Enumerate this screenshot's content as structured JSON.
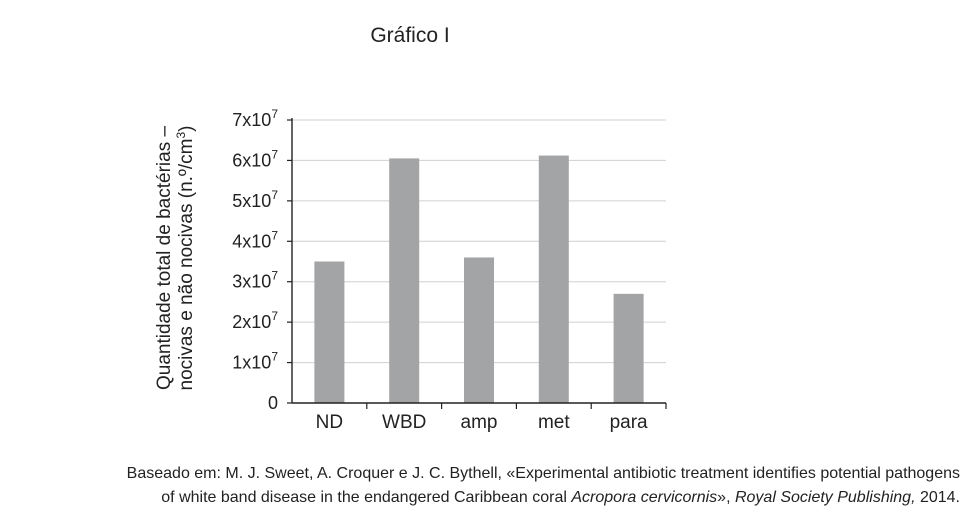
{
  "chart_data": {
    "type": "bar",
    "title": "Gráfico I",
    "categories": [
      "ND",
      "WBD",
      "amp",
      "met",
      "para"
    ],
    "values": [
      35000000,
      60500000,
      36000000,
      61200000,
      27000000
    ],
    "ylim": [
      0,
      70000000
    ],
    "yticks": [
      {
        "value": 0,
        "base": "0",
        "exp": ""
      },
      {
        "value": 10000000,
        "base": "1x10",
        "exp": "7"
      },
      {
        "value": 20000000,
        "base": "2x10",
        "exp": "7"
      },
      {
        "value": 30000000,
        "base": "3x10",
        "exp": "7"
      },
      {
        "value": 40000000,
        "base": "4x10",
        "exp": "7"
      },
      {
        "value": 50000000,
        "base": "5x10",
        "exp": "7"
      },
      {
        "value": 60000000,
        "base": "6x10",
        "exp": "7"
      },
      {
        "value": 70000000,
        "base": "7x10",
        "exp": "7"
      }
    ],
    "ylabel_line1": "Quantidade total de bactérias –",
    "ylabel_line2_main": "nocivas e não nocivas (n.º/cm",
    "ylabel_line2_sup": "3",
    "ylabel_line2_end": ")",
    "xlabel": "",
    "grid": true,
    "bar_color": "#a3a4a6"
  },
  "source": {
    "line1": "Baseado em: M. J. Sweet, A. Croquer e J. C. Bythell, «Experimental antibiotic treatment identifies potential pathogens",
    "line2_pre": "of white band disease in the endangered Caribbean coral ",
    "line2_italic1": "Acropora cervicornis",
    "line2_mid": "», ",
    "line2_italic2": "Royal Society Publishing,",
    "line2_post": " 2014."
  }
}
